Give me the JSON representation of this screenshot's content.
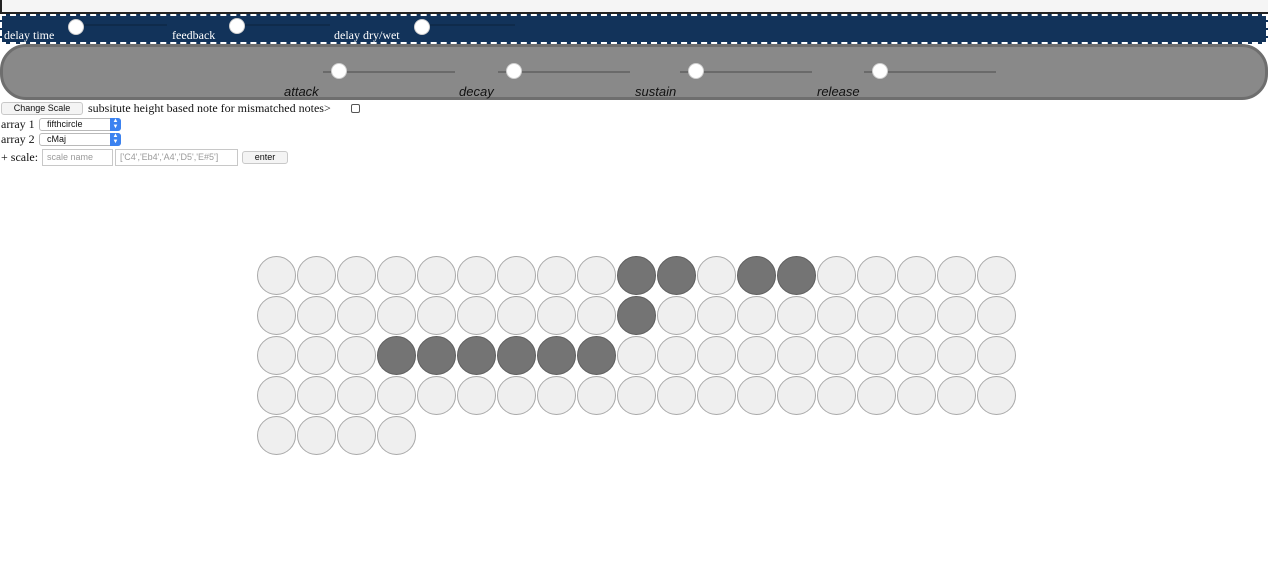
{
  "delay": {
    "labels": [
      "delay time",
      "feedback",
      "delay dry/wet"
    ]
  },
  "envelope": {
    "labels": [
      "attack",
      "decay",
      "sustain",
      "release"
    ]
  },
  "controls": {
    "change_scale_label": "Change Scale",
    "substitute_label": "subsitute height based note for mismatched notes>",
    "array1_label": "array 1",
    "array1_value": "fifthcircle",
    "array2_label": "array 2",
    "array2_value": "cMaj",
    "add_scale_label": "+ scale:",
    "scale_name_placeholder": "scale name",
    "scale_notes_value": "['C4','Eb4','A4','D5','E#5']",
    "enter_label": "enter"
  },
  "grid": {
    "columns": 19,
    "total": 80,
    "active": [
      9,
      10,
      12,
      13,
      28,
      41,
      42,
      43,
      44,
      45,
      46
    ],
    "colors": {
      "off": "#efefef",
      "on": "#747474"
    }
  }
}
